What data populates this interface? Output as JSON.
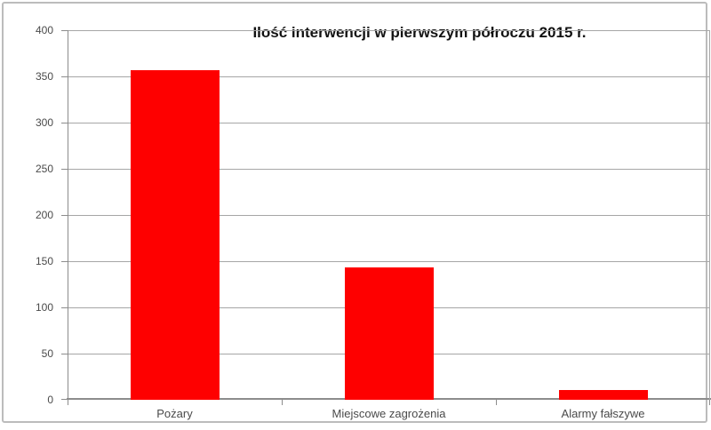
{
  "chart_data": {
    "type": "bar",
    "title": "Ilość interwencji w pierwszym półroczu 2015 r.",
    "categories": [
      "Pożary",
      "Miejscowe zagrożenia",
      "Alarmy fałszywe"
    ],
    "values": [
      357,
      143,
      11
    ],
    "ylim": [
      0,
      400
    ],
    "ytick_step": 50,
    "ytick_labels": [
      "0",
      "50",
      "100",
      "150",
      "200",
      "250",
      "300",
      "350",
      "400"
    ],
    "xlabel": "",
    "ylabel": "",
    "grid": true,
    "legend": false,
    "colors": {
      "bar": "#fe0000",
      "gridline": "#a6a6a6",
      "axis": "#8c8c8c",
      "tick_label": "#4a4a4a",
      "title": "#111111",
      "frame_border": "#bcbcbc",
      "background": "#ffffff"
    }
  }
}
